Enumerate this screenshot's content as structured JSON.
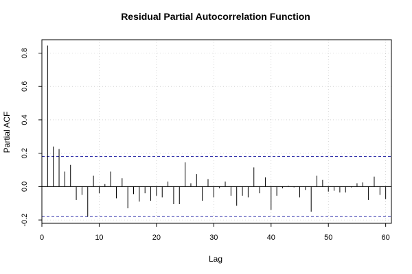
{
  "chart_data": {
    "type": "bar",
    "title": "Residual Partial Autocorrelation Function",
    "xlabel": "Lag",
    "ylabel": "Partial ACF",
    "xlim": [
      0,
      61
    ],
    "ylim": [
      -0.22,
      0.88
    ],
    "x_ticks": [
      0,
      10,
      20,
      30,
      40,
      50,
      60
    ],
    "y_ticks": [
      -0.2,
      0.0,
      0.2,
      0.4,
      0.6,
      0.8
    ],
    "x_tick_labels": [
      "0",
      "10",
      "20",
      "30",
      "40",
      "50",
      "60"
    ],
    "y_tick_labels": [
      "-0.2",
      "0.0",
      "0.2",
      "0.4",
      "0.6",
      "0.8"
    ],
    "confidence_band": 0.18,
    "grid": true,
    "colors": {
      "bars": "#000000",
      "band": "#3333aa",
      "grid": "#bbbbbb"
    },
    "series": [
      {
        "lags": [
          1,
          2,
          3,
          4,
          5,
          6,
          7,
          8,
          9,
          10,
          11,
          12,
          13,
          14,
          15,
          16,
          17,
          18,
          19,
          20,
          21,
          22,
          23,
          24,
          25,
          26,
          27,
          28,
          29,
          30,
          31,
          32,
          33,
          34,
          35,
          36,
          37,
          38,
          39,
          40,
          41,
          42,
          43,
          44,
          45,
          46,
          47,
          48,
          49,
          50,
          51,
          52,
          53,
          54,
          55,
          56,
          57,
          58,
          59,
          60
        ],
        "values": [
          0.845,
          0.24,
          0.225,
          0.09,
          0.13,
          -0.08,
          -0.05,
          -0.18,
          0.065,
          -0.04,
          0.015,
          0.09,
          -0.07,
          0.05,
          -0.13,
          -0.045,
          -0.09,
          -0.04,
          -0.085,
          -0.055,
          -0.065,
          0.03,
          -0.105,
          -0.105,
          0.145,
          0.02,
          0.075,
          -0.085,
          0.045,
          -0.065,
          -0.01,
          0.03,
          -0.055,
          -0.115,
          -0.055,
          -0.065,
          0.115,
          -0.04,
          0.055,
          -0.14,
          -0.055,
          -0.01,
          0.005,
          -0.005,
          -0.065,
          -0.02,
          -0.15,
          0.065,
          0.04,
          -0.03,
          -0.025,
          -0.035,
          -0.035,
          -0.005,
          0.02,
          0.025,
          -0.08,
          0.06,
          -0.05,
          -0.075
        ]
      }
    ]
  }
}
